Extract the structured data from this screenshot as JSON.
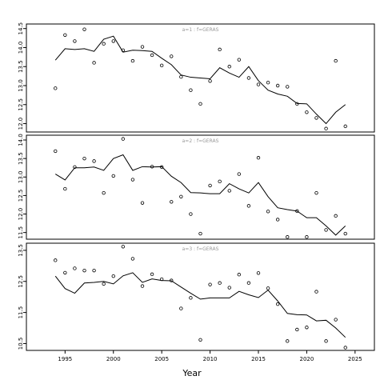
{
  "chart_data": [
    {
      "type": "scatter",
      "title": "a=1 : f=GERAS",
      "x_label": "Year",
      "xlim": [
        1991,
        2027
      ],
      "ylim": [
        11.78,
        14.62
      ],
      "yticks": [
        12.0,
        12.5,
        13.0,
        13.5,
        14.0,
        14.5
      ],
      "ytick_labels": [
        "12.0",
        "12.5",
        "13.0",
        "13.5",
        "14.0",
        "14.5"
      ],
      "xticks": [
        1995,
        2000,
        2005,
        2010,
        2015,
        2020,
        2025
      ],
      "xtick_labels": [
        "1995",
        "2000",
        "2005",
        "2010",
        "2015",
        "2020",
        "2025"
      ],
      "series": [
        {
          "type": "scatter",
          "x": [
            1994,
            1995,
            1996,
            1997,
            1998,
            1999,
            2000,
            2001,
            2002,
            2003,
            2004,
            2005,
            2006,
            2007,
            2008,
            2009,
            2010,
            2011,
            2012,
            2013,
            2014,
            2015,
            2016,
            2017,
            2018,
            2019,
            2020,
            2021,
            2022,
            2023,
            2024
          ],
          "y": [
            12.93,
            14.33,
            14.17,
            14.48,
            13.6,
            14.1,
            14.17,
            13.93,
            13.65,
            14.02,
            13.8,
            13.53,
            13.77,
            13.23,
            12.88,
            12.52,
            13.12,
            13.95,
            13.5,
            13.68,
            13.2,
            13.03,
            13.08,
            13.0,
            12.97,
            12.52,
            12.3,
            12.15,
            11.87,
            13.65,
            11.93
          ]
        },
        {
          "type": "line",
          "x": [
            1994,
            1995,
            1996,
            1997,
            1998,
            1999,
            2000,
            2001,
            2002,
            2003,
            2004,
            2005,
            2006,
            2007,
            2008,
            2009,
            2010,
            2011,
            2012,
            2013,
            2014,
            2015,
            2016,
            2017,
            2018,
            2019,
            2020,
            2021,
            2022,
            2023,
            2024
          ],
          "y": [
            13.67,
            13.97,
            13.95,
            13.97,
            13.9,
            14.22,
            14.3,
            13.88,
            13.93,
            13.92,
            13.9,
            13.72,
            13.55,
            13.28,
            13.22,
            13.2,
            13.18,
            13.47,
            13.33,
            13.22,
            13.5,
            13.13,
            12.88,
            12.78,
            12.72,
            12.53,
            12.52,
            12.25,
            12.0,
            12.3,
            12.5
          ]
        }
      ]
    },
    {
      "type": "scatter",
      "title": "a=2 : f=GERAS",
      "x_label": "Year",
      "xlim": [
        1991,
        2027
      ],
      "ylim": [
        11.32,
        14.13
      ],
      "yticks": [
        11.5,
        12.0,
        12.5,
        13.0,
        13.5,
        14.0
      ],
      "ytick_labels": [
        "11.5",
        "12.0",
        "12.5",
        "13.0",
        "13.5",
        "14.0"
      ],
      "xticks": [
        1995,
        2000,
        2005,
        2010,
        2015,
        2020,
        2025
      ],
      "xtick_labels": [
        "1995",
        "2000",
        "2005",
        "2010",
        "2015",
        "2020",
        "2025"
      ],
      "series": [
        {
          "type": "scatter",
          "x": [
            1994,
            1995,
            1996,
            1997,
            1998,
            1999,
            2000,
            2001,
            2002,
            2003,
            2004,
            2005,
            2006,
            2007,
            2008,
            2009,
            2010,
            2011,
            2012,
            2013,
            2014,
            2015,
            2016,
            2017,
            2018,
            2019,
            2020,
            2021,
            2022,
            2023,
            2024
          ],
          "y": [
            13.7,
            12.68,
            13.27,
            13.5,
            13.43,
            12.57,
            13.03,
            14.03,
            12.93,
            12.3,
            13.28,
            13.27,
            12.33,
            12.47,
            12.0,
            11.47,
            12.77,
            12.88,
            12.63,
            13.08,
            12.22,
            13.52,
            12.07,
            11.85,
            11.38,
            12.08,
            11.38,
            12.57,
            11.57,
            11.95,
            11.47
          ]
        },
        {
          "type": "line",
          "x": [
            1994,
            1995,
            1996,
            1997,
            1998,
            1999,
            2000,
            2001,
            2002,
            2003,
            2004,
            2005,
            2006,
            2007,
            2008,
            2009,
            2010,
            2011,
            2012,
            2013,
            2014,
            2015,
            2016,
            2017,
            2018,
            2019,
            2020,
            2021,
            2022,
            2023,
            2024
          ],
          "y": [
            13.08,
            12.92,
            13.25,
            13.25,
            13.27,
            13.18,
            13.5,
            13.6,
            13.18,
            13.28,
            13.27,
            13.28,
            13.02,
            12.85,
            12.58,
            12.57,
            12.55,
            12.55,
            12.82,
            12.68,
            12.57,
            12.85,
            12.47,
            12.17,
            12.12,
            12.08,
            11.9,
            11.9,
            11.68,
            11.43,
            11.68
          ]
        }
      ]
    },
    {
      "type": "scatter",
      "title": "a=3 : f=GERAS",
      "x_label": "Year",
      "xlim": [
        1991,
        2027
      ],
      "ylim": [
        10.28,
        13.73
      ],
      "yticks": [
        10.5,
        11.5,
        12.5,
        13.5
      ],
      "ytick_labels": [
        "10.5",
        "11.5",
        "12.5",
        "13.5"
      ],
      "xticks": [
        1995,
        2000,
        2005,
        2010,
        2015,
        2020,
        2025
      ],
      "xtick_labels": [
        "1995",
        "2000",
        "2005",
        "2010",
        "2015",
        "2020",
        "2025"
      ],
      "series": [
        {
          "type": "scatter",
          "x": [
            1994,
            1995,
            1996,
            1997,
            1998,
            1999,
            2000,
            2001,
            2002,
            2003,
            2004,
            2005,
            2006,
            2007,
            2008,
            2009,
            2010,
            2011,
            2012,
            2013,
            2014,
            2015,
            2016,
            2017,
            2018,
            2019,
            2020,
            2021,
            2022,
            2023,
            2024
          ],
          "y": [
            13.18,
            12.78,
            12.92,
            12.85,
            12.85,
            12.42,
            12.67,
            13.62,
            13.23,
            12.35,
            12.73,
            12.57,
            12.53,
            11.63,
            11.97,
            10.62,
            12.4,
            12.45,
            12.3,
            12.72,
            12.45,
            12.77,
            12.28,
            11.77,
            10.58,
            10.95,
            11.02,
            12.17,
            10.58,
            11.27,
            10.37
          ]
        },
        {
          "type": "line",
          "x": [
            1994,
            1995,
            1996,
            1997,
            1998,
            1999,
            2000,
            2001,
            2002,
            2003,
            2004,
            2005,
            2006,
            2007,
            2008,
            2009,
            2010,
            2011,
            2012,
            2013,
            2014,
            2015,
            2016,
            2017,
            2018,
            2019,
            2020,
            2021,
            2022,
            2023,
            2024
          ],
          "y": [
            12.67,
            12.27,
            12.12,
            12.45,
            12.47,
            12.5,
            12.42,
            12.68,
            12.78,
            12.47,
            12.58,
            12.53,
            12.52,
            12.32,
            12.12,
            11.93,
            11.97,
            11.97,
            11.97,
            12.18,
            12.07,
            11.98,
            12.22,
            11.87,
            11.47,
            11.43,
            11.42,
            11.23,
            11.25,
            11.0,
            10.7
          ]
        }
      ]
    }
  ],
  "axis_title": "Year"
}
